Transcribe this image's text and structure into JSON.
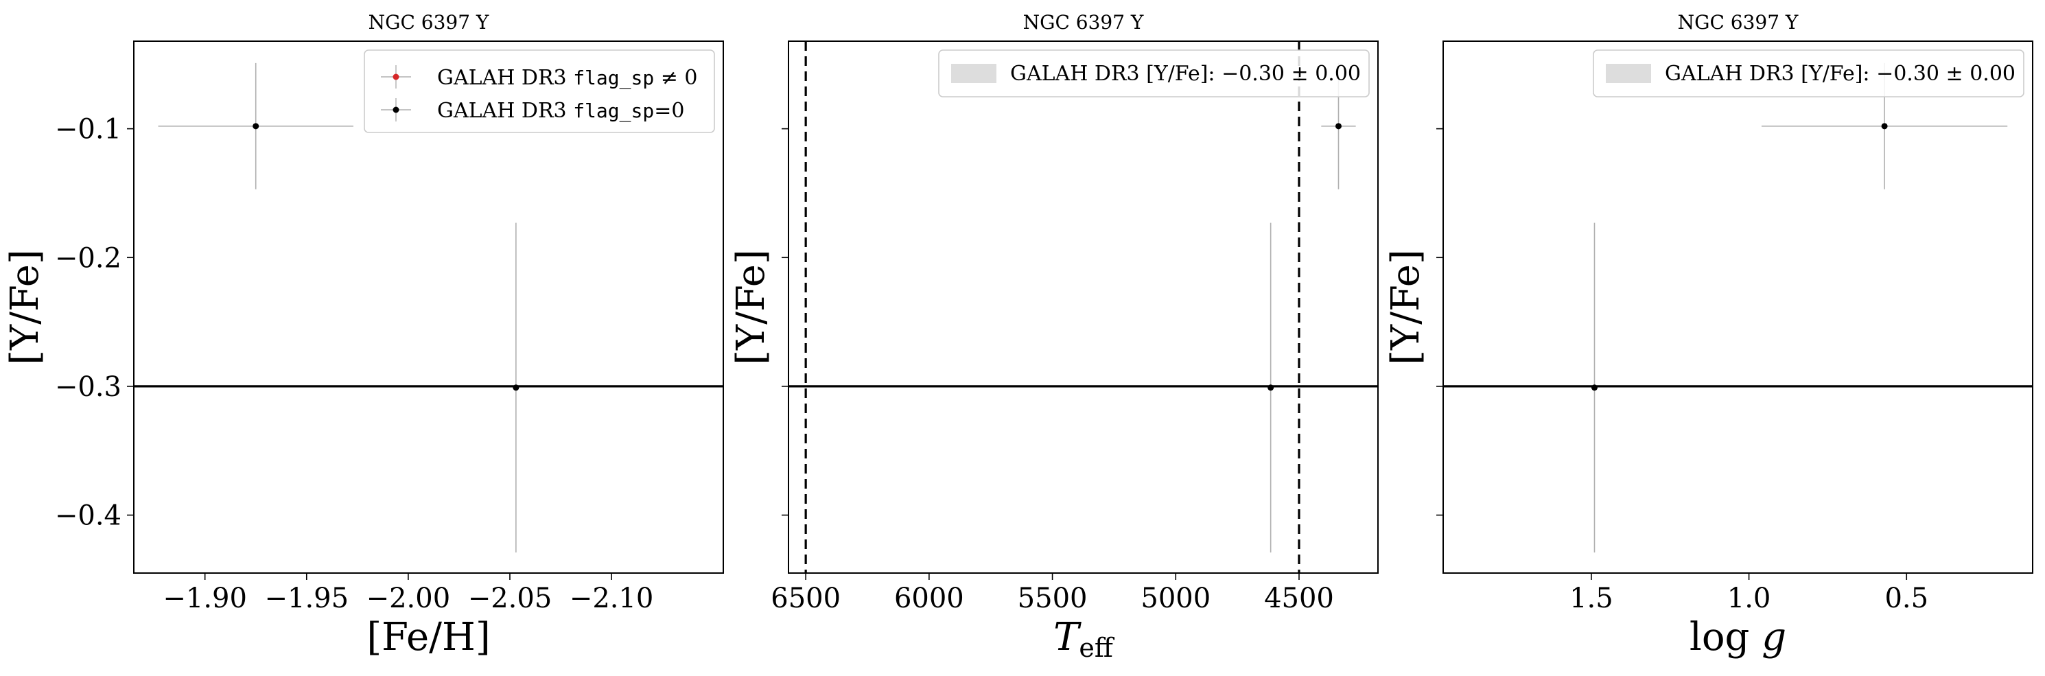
{
  "figure": {
    "background": "#ffffff"
  },
  "chart_data": [
    {
      "type": "scatter",
      "title": "NGC 6397 Y",
      "xlabel": "[Fe/H]",
      "ylabel": "[Y/Fe]",
      "xlim": [
        -1.865,
        -2.155
      ],
      "ylim": [
        -0.445,
        -0.032
      ],
      "xticks": [
        -1.9,
        -1.95,
        -2.0,
        -2.05,
        -2.1
      ],
      "xtick_labels": [
        "−1.90",
        "−1.95",
        "−2.00",
        "−2.05",
        "−2.10"
      ],
      "yticks": [
        -0.1,
        -0.2,
        -0.3,
        -0.4
      ],
      "ytick_labels": [
        "−0.1",
        "−0.2",
        "−0.3",
        "−0.4"
      ],
      "show_ytick_labels": true,
      "reference_line": -0.3,
      "legend": {
        "placement": "top-right",
        "entries": [
          {
            "kind": "marker",
            "color": "#d62728",
            "prefix": "GALAH DR3 ",
            "code": "flag_sp",
            "suffix": " ≠ 0"
          },
          {
            "kind": "marker",
            "color": "#000000",
            "prefix": "GALAH DR3 ",
            "code": "flag_sp",
            "suffix": "=0"
          }
        ]
      },
      "series": [
        {
          "name": "GALAH DR3 flag_sp=0",
          "points": [
            {
              "x": -1.925,
              "y": -0.098,
              "xerr": 0.048,
              "yerr": 0.049
            },
            {
              "x": -2.053,
              "y": -0.301,
              "xerr": 0.0,
              "yerr": 0.128
            }
          ]
        },
        {
          "name": "GALAH DR3 flag_sp ≠ 0",
          "points": []
        }
      ]
    },
    {
      "type": "scatter",
      "title": "NGC 6397 Y",
      "xlabel": "T_eff",
      "xlabel_main": "T",
      "xlabel_sub": "eff",
      "ylabel": "[Y/Fe]",
      "xlim": [
        6570,
        4180
      ],
      "ylim": [
        -0.445,
        -0.032
      ],
      "xticks": [
        6500,
        6000,
        5500,
        5000,
        4500
      ],
      "xtick_labels": [
        "6500",
        "6000",
        "5500",
        "5000",
        "4500"
      ],
      "yticks": [
        -0.1,
        -0.2,
        -0.3,
        -0.4
      ],
      "show_ytick_labels": false,
      "reference_line": -0.3,
      "vertical_lines": [
        6500,
        4500
      ],
      "legend": {
        "placement": "top-right",
        "entries": [
          {
            "kind": "band",
            "color": "#dddddd",
            "prefix": "GALAH DR3 [Y/Fe]: ",
            "code": "",
            "suffix": "−0.30 ± 0.00"
          }
        ]
      },
      "series": [
        {
          "name": "GALAH DR3 flag_sp=0",
          "points": [
            {
              "x": 4340,
              "y": -0.098,
              "xerr": 70,
              "yerr": 0.049
            },
            {
              "x": 4615,
              "y": -0.301,
              "xerr": 0,
              "yerr": 0.128
            }
          ]
        }
      ]
    },
    {
      "type": "scatter",
      "title": "NGC 6397 Y",
      "xlabel": "log g",
      "xlabel_main": "log ",
      "xlabel_sub": "g",
      "ylabel": "[Y/Fe]",
      "xlim": [
        1.97,
        0.1
      ],
      "ylim": [
        -0.445,
        -0.032
      ],
      "xticks": [
        1.5,
        1.0,
        0.5
      ],
      "xtick_labels": [
        "1.5",
        "1.0",
        "0.5"
      ],
      "yticks": [
        -0.1,
        -0.2,
        -0.3,
        -0.4
      ],
      "show_ytick_labels": false,
      "reference_line": -0.3,
      "legend": {
        "placement": "top-right",
        "entries": [
          {
            "kind": "band",
            "color": "#dddddd",
            "prefix": "GALAH DR3 [Y/Fe]: ",
            "code": "",
            "suffix": "−0.30 ± 0.00"
          }
        ]
      },
      "series": [
        {
          "name": "GALAH DR3 flag_sp=0",
          "points": [
            {
              "x": 0.57,
              "y": -0.098,
              "xerr": 0.39,
              "yerr": 0.049
            },
            {
              "x": 1.49,
              "y": -0.301,
              "xerr": 0.0,
              "yerr": 0.128
            }
          ]
        }
      ]
    }
  ]
}
